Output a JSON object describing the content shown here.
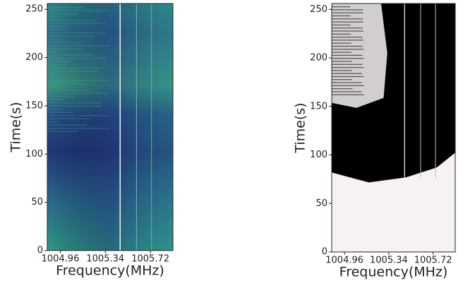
{
  "chart_data": [
    {
      "type": "heatmap",
      "xlabel": "Frequency(MHz)",
      "ylabel": "Time(s)",
      "xlim": [
        1004.85,
        1005.91
      ],
      "xticks": [
        1004.96,
        1005.34,
        1005.72
      ],
      "ylim": [
        0,
        256
      ],
      "yticks": [
        0,
        50,
        100,
        150,
        200,
        250
      ],
      "colormap": "viridis"
    },
    {
      "type": "heatmap",
      "xlabel": "Frequency(MHz)",
      "ylabel": "Time(s)",
      "xlim": [
        1004.85,
        1005.91
      ],
      "xticks": [
        1004.96,
        1005.34,
        1005.72
      ],
      "ylim": [
        0,
        256
      ],
      "yticks": [
        0,
        50,
        100,
        150,
        200,
        250
      ],
      "colormap": "binary"
    }
  ]
}
